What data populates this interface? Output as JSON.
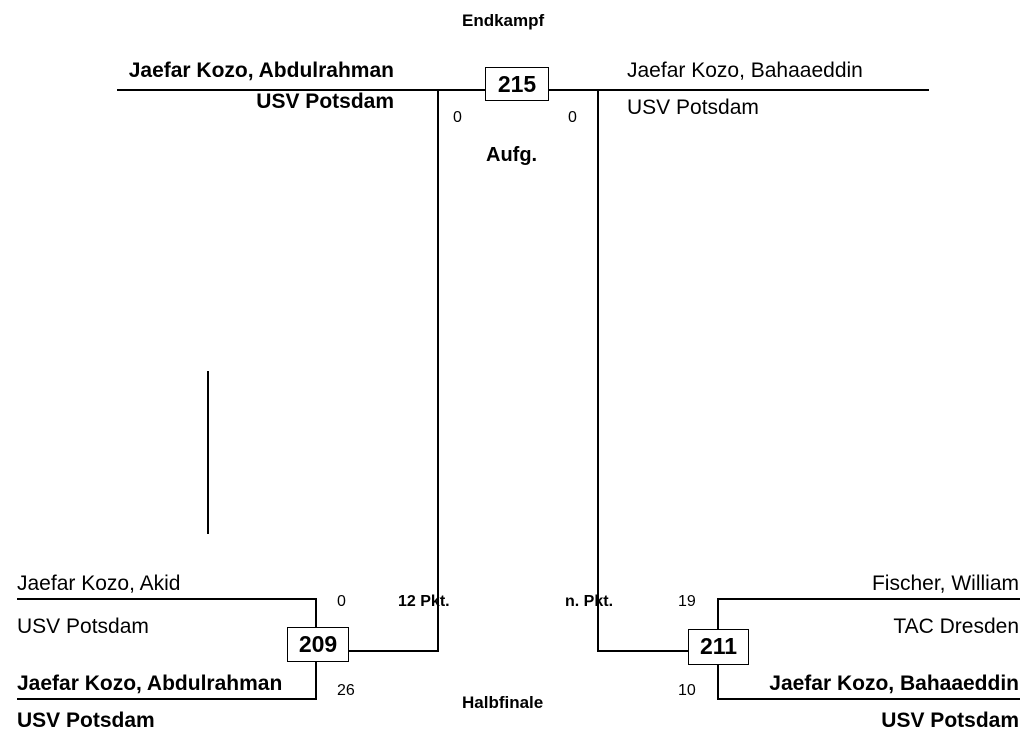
{
  "final": {
    "title": "Endkampf",
    "match_number": "215",
    "result": "Aufg.",
    "left": {
      "name": "Jaefar Kozo, Abdulrahman",
      "club": "USV Potsdam",
      "score": "0",
      "winner": true
    },
    "right": {
      "name": "Jaefar Kozo, Bahaaeddin",
      "club": "USV Potsdam",
      "score": "0",
      "winner": false
    }
  },
  "semifinal": {
    "title": "Halbfinale",
    "left": {
      "match_number": "209",
      "result": "12 Pkt.",
      "top": {
        "name": "Jaefar Kozo, Akid",
        "club": "USV Potsdam",
        "score": "0",
        "winner": false
      },
      "bottom": {
        "name": "Jaefar Kozo, Abdulrahman",
        "club": "USV Potsdam",
        "score": "26",
        "winner": true
      }
    },
    "right": {
      "match_number": "211",
      "result": "n. Pkt.",
      "top": {
        "name": "Fischer, William",
        "club": "TAC Dresden",
        "score": "19",
        "winner": false
      },
      "bottom": {
        "name": "Jaefar Kozo, Bahaaeddin",
        "club": "USV Potsdam",
        "score": "10",
        "winner": true
      }
    }
  }
}
